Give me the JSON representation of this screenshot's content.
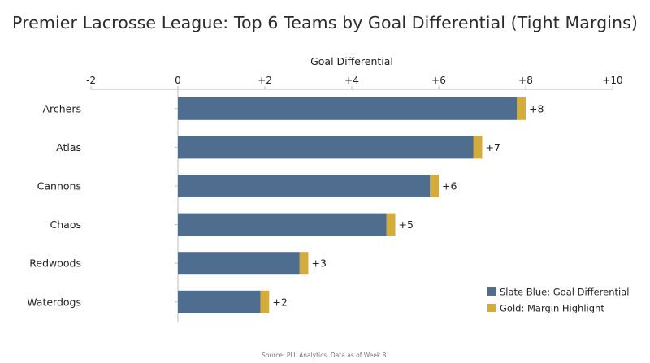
{
  "chart_data": {
    "type": "bar",
    "orientation": "horizontal",
    "title": "Premier Lacrosse League: Top 6 Teams by Goal Differential (Tight Margins)",
    "xlabel": "Goal Differential",
    "ylabel": "",
    "xlim": [
      -2,
      10
    ],
    "x_ticks": [
      -2,
      0,
      2,
      4,
      6,
      8,
      10
    ],
    "x_tick_labels": [
      "-2",
      "0",
      "+2",
      "+4",
      "+6",
      "+8",
      "+10"
    ],
    "axis_position": "top",
    "grid": false,
    "legend_position": "bottom-right",
    "categories": [
      "Archers",
      "Atlas",
      "Cannons",
      "Chaos",
      "Redwoods",
      "Waterdogs"
    ],
    "series": [
      {
        "name": "Slate Blue: Goal Differential",
        "color": "#4f6d8f",
        "values": [
          7.8,
          6.8,
          5.8,
          4.8,
          2.8,
          1.9
        ]
      },
      {
        "name": "Gold: Margin Highlight",
        "color": "#d4ac3b",
        "values": [
          0.2,
          0.2,
          0.2,
          0.2,
          0.2,
          0.2
        ]
      }
    ],
    "totals": [
      8,
      7,
      6,
      5,
      3,
      2
    ],
    "data_labels": [
      "+8",
      "+7",
      "+6",
      "+5",
      "+3",
      "+2"
    ],
    "source": "Source: PLL Analytics. Data as of Week 8."
  }
}
